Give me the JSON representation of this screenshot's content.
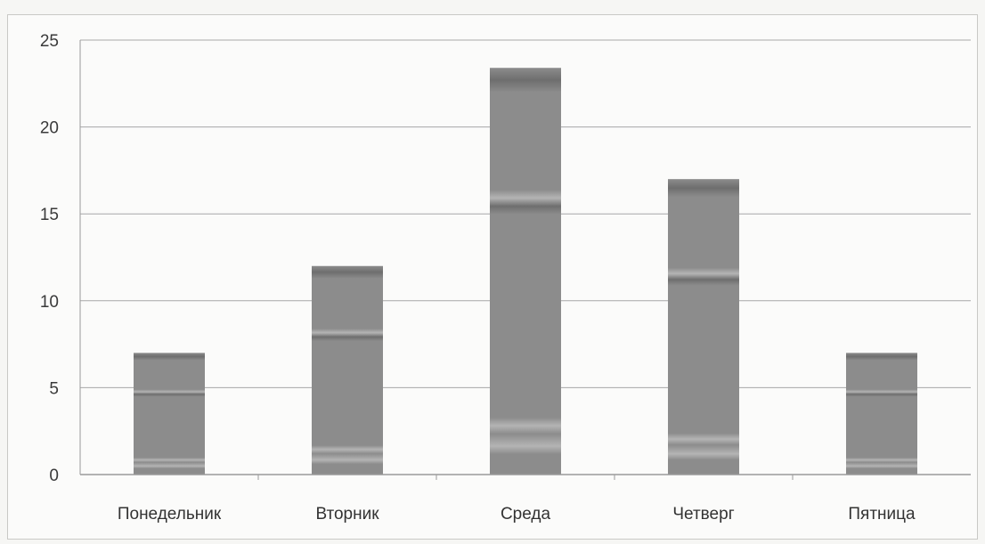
{
  "chart_data": {
    "type": "bar",
    "categories": [
      "Понедельник",
      "Вторник",
      "Среда",
      "Четверг",
      "Пятница"
    ],
    "values": [
      7,
      12,
      23.4,
      17,
      7
    ],
    "yticks": [
      "0",
      "5",
      "10",
      "15",
      "20",
      "25"
    ],
    "ylim": [
      0,
      25
    ],
    "grid": true,
    "legend": "none",
    "title": "",
    "xlabel": "",
    "ylabel": "",
    "colors": {
      "bar": "#8c8c8c",
      "bar_stripe_light": "#b4b4b4",
      "bar_stripe_dark": "#6e6e6e",
      "grid": "#a8a8a8",
      "axis": "#9a9a9a"
    }
  }
}
